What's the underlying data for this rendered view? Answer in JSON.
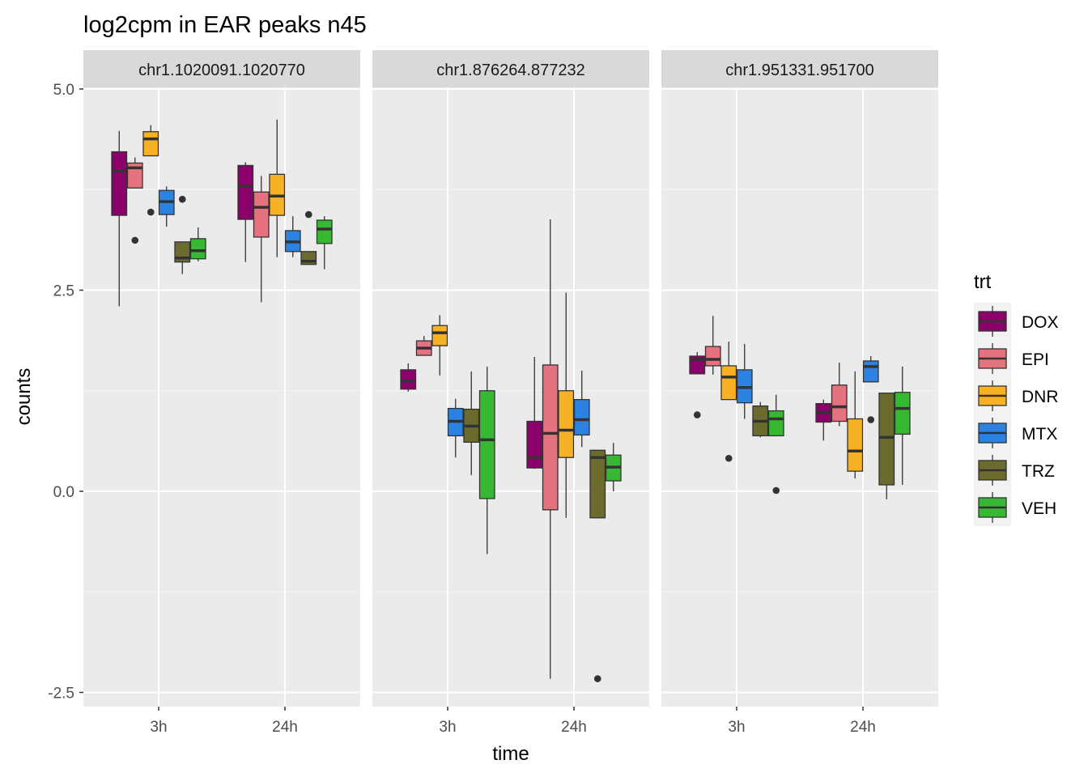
{
  "chart_data": {
    "type": "boxplot",
    "title": "log2cpm in EAR peaks n45",
    "xlabel": "time",
    "ylabel": "counts",
    "ylim": [
      -2.65,
      5.2
    ],
    "y_ticks": [
      "-2.5",
      "0.0",
      "2.5",
      "5.0"
    ],
    "y_tick_values": [
      -2.5,
      0.0,
      2.5,
      5.0
    ],
    "grid": true,
    "legend": {
      "title": "trt",
      "placement": "right",
      "items": [
        {
          "label": "DOX",
          "color": "#8B006B"
        },
        {
          "label": "EPI",
          "color": "#E5737F"
        },
        {
          "label": "DNR",
          "color": "#F6B125"
        },
        {
          "label": "MTX",
          "color": "#2C82E0"
        },
        {
          "label": "TRZ",
          "color": "#6B6B2D"
        },
        {
          "label": "VEH",
          "color": "#36B833"
        }
      ]
    },
    "categories": [
      "3h",
      "24h"
    ],
    "panels": [
      {
        "label": "chr1.1020091.1020770",
        "boxes": {
          "3h": [
            {
              "trt": "DOX",
              "min": 2.3,
              "q1": 3.43,
              "median": 3.98,
              "q3": 4.22,
              "max": 4.48,
              "outliers": []
            },
            {
              "trt": "EPI",
              "min": 3.77,
              "q1": 3.77,
              "median": 4.02,
              "q3": 4.08,
              "max": 4.15,
              "outliers": [
                3.12
              ]
            },
            {
              "trt": "DNR",
              "min": 4.17,
              "q1": 4.17,
              "median": 4.38,
              "q3": 4.47,
              "max": 4.55,
              "outliers": [
                3.47
              ]
            },
            {
              "trt": "MTX",
              "min": 3.29,
              "q1": 3.44,
              "median": 3.6,
              "q3": 3.74,
              "max": 3.79,
              "outliers": []
            },
            {
              "trt": "TRZ",
              "min": 2.7,
              "q1": 2.85,
              "median": 2.9,
              "q3": 3.1,
              "max": 3.1,
              "outliers": [
                3.63
              ]
            },
            {
              "trt": "VEH",
              "min": 2.86,
              "q1": 2.89,
              "median": 2.99,
              "q3": 3.14,
              "max": 3.28,
              "outliers": []
            }
          ],
          "24h": [
            {
              "trt": "DOX",
              "min": 2.85,
              "q1": 3.38,
              "median": 3.79,
              "q3": 4.05,
              "max": 4.09,
              "outliers": []
            },
            {
              "trt": "EPI",
              "min": 2.35,
              "q1": 3.16,
              "median": 3.53,
              "q3": 3.72,
              "max": 3.92,
              "outliers": []
            },
            {
              "trt": "DNR",
              "min": 2.91,
              "q1": 3.43,
              "median": 3.67,
              "q3": 3.94,
              "max": 4.62,
              "outliers": []
            },
            {
              "trt": "MTX",
              "min": 2.91,
              "q1": 2.98,
              "median": 3.1,
              "q3": 3.24,
              "max": 3.42,
              "outliers": []
            },
            {
              "trt": "TRZ",
              "min": 2.82,
              "q1": 2.82,
              "median": 2.86,
              "q3": 2.98,
              "max": 2.98,
              "outliers": [
                3.44
              ]
            },
            {
              "trt": "VEH",
              "min": 2.76,
              "q1": 3.08,
              "median": 3.26,
              "q3": 3.37,
              "max": 3.42,
              "outliers": []
            }
          ]
        }
      },
      {
        "label": "chr1.876264.877232",
        "boxes": {
          "3h": [
            {
              "trt": "DOX",
              "min": 1.24,
              "q1": 1.27,
              "median": 1.37,
              "q3": 1.51,
              "max": 1.59,
              "outliers": []
            },
            {
              "trt": "EPI",
              "min": 1.69,
              "q1": 1.69,
              "median": 1.78,
              "q3": 1.87,
              "max": 1.93,
              "outliers": []
            },
            {
              "trt": "DNR",
              "min": 1.44,
              "q1": 1.81,
              "median": 1.97,
              "q3": 2.06,
              "max": 2.19,
              "outliers": []
            },
            {
              "trt": "MTX",
              "min": 0.42,
              "q1": 0.69,
              "median": 0.87,
              "q3": 1.03,
              "max": 1.15,
              "outliers": []
            },
            {
              "trt": "TRZ",
              "min": 0.2,
              "q1": 0.61,
              "median": 0.81,
              "q3": 1.02,
              "max": 1.49,
              "outliers": []
            },
            {
              "trt": "VEH",
              "min": -0.78,
              "q1": -0.09,
              "median": 0.64,
              "q3": 1.25,
              "max": 1.55,
              "outliers": []
            }
          ],
          "24h": [
            {
              "trt": "DOX",
              "min": 0.28,
              "q1": 0.29,
              "median": 0.42,
              "q3": 0.87,
              "max": 1.67,
              "outliers": []
            },
            {
              "trt": "EPI",
              "min": -2.33,
              "q1": -0.23,
              "median": 0.72,
              "q3": 1.57,
              "max": 3.38,
              "outliers": []
            },
            {
              "trt": "DNR",
              "min": -0.33,
              "q1": 0.42,
              "median": 0.76,
              "q3": 1.25,
              "max": 2.47,
              "outliers": []
            },
            {
              "trt": "MTX",
              "min": 0.55,
              "q1": 0.7,
              "median": 0.89,
              "q3": 1.14,
              "max": 1.5,
              "outliers": []
            },
            {
              "trt": "TRZ",
              "min": -0.33,
              "q1": -0.33,
              "median": 0.42,
              "q3": 0.51,
              "max": 0.51,
              "outliers": [
                -2.33
              ]
            },
            {
              "trt": "VEH",
              "min": 0.0,
              "q1": 0.13,
              "median": 0.3,
              "q3": 0.45,
              "max": 0.6,
              "outliers": []
            }
          ]
        }
      },
      {
        "label": "chr1.951331.951700",
        "boxes": {
          "3h": [
            {
              "trt": "DOX",
              "min": 1.46,
              "q1": 1.46,
              "median": 1.64,
              "q3": 1.68,
              "max": 1.73,
              "outliers": [
                0.95
              ]
            },
            {
              "trt": "EPI",
              "min": 1.45,
              "q1": 1.56,
              "median": 1.64,
              "q3": 1.8,
              "max": 2.18,
              "outliers": []
            },
            {
              "trt": "DNR",
              "min": 1.14,
              "q1": 1.14,
              "median": 1.42,
              "q3": 1.56,
              "max": 1.86,
              "outliers": [
                0.41
              ]
            },
            {
              "trt": "MTX",
              "min": 0.9,
              "q1": 1.1,
              "median": 1.29,
              "q3": 1.51,
              "max": 1.83,
              "outliers": []
            },
            {
              "trt": "TRZ",
              "min": 0.67,
              "q1": 0.69,
              "median": 0.87,
              "q3": 1.06,
              "max": 1.11,
              "outliers": []
            },
            {
              "trt": "VEH",
              "min": 0.69,
              "q1": 0.69,
              "median": 0.9,
              "q3": 1.0,
              "max": 1.2,
              "outliers": [
                0.01
              ]
            }
          ],
          "24h": [
            {
              "trt": "DOX",
              "min": 0.63,
              "q1": 0.86,
              "median": 0.98,
              "q3": 1.09,
              "max": 1.14,
              "outliers": []
            },
            {
              "trt": "EPI",
              "min": 0.81,
              "q1": 0.87,
              "median": 1.05,
              "q3": 1.32,
              "max": 1.6,
              "outliers": []
            },
            {
              "trt": "DNR",
              "min": 0.16,
              "q1": 0.25,
              "median": 0.5,
              "q3": 0.9,
              "max": 1.49,
              "outliers": []
            },
            {
              "trt": "MTX",
              "min": 1.36,
              "q1": 1.36,
              "median": 1.55,
              "q3": 1.62,
              "max": 1.68,
              "outliers": [
                0.89
              ]
            },
            {
              "trt": "TRZ",
              "min": -0.1,
              "q1": 0.08,
              "median": 0.67,
              "q3": 1.22,
              "max": 1.22,
              "outliers": []
            },
            {
              "trt": "VEH",
              "min": 0.08,
              "q1": 0.71,
              "median": 1.03,
              "q3": 1.23,
              "max": 1.55,
              "outliers": []
            }
          ]
        }
      }
    ]
  }
}
